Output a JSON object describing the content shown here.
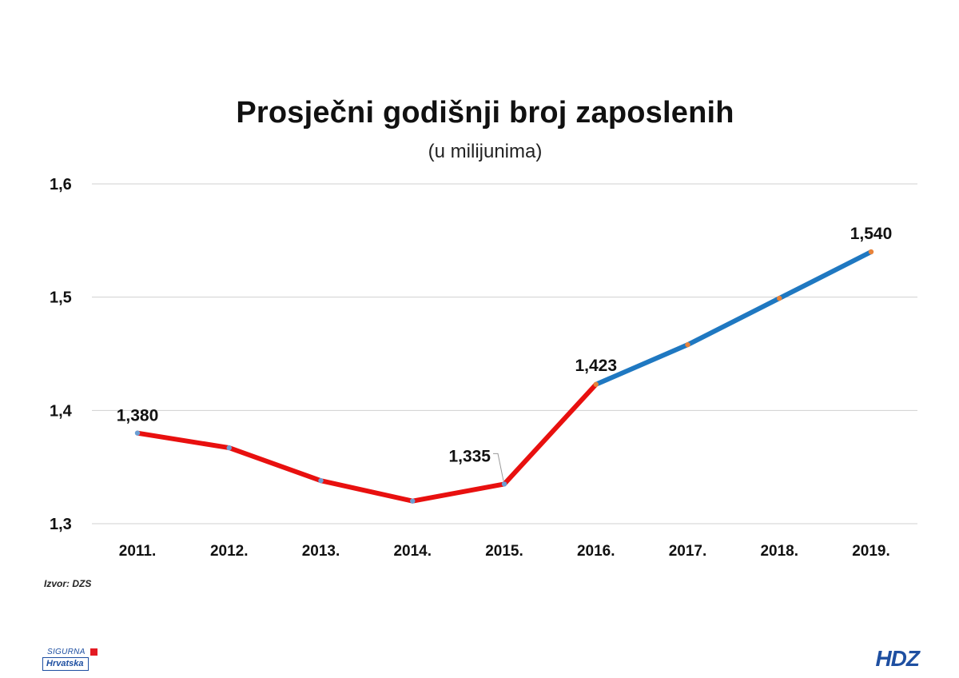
{
  "chart_data": {
    "type": "line",
    "title": "Prosječni godišnji broj zaposlenih",
    "subtitle": "(u milijunima)",
    "categories": [
      "2011.",
      "2012.",
      "2013.",
      "2014.",
      "2015.",
      "2016.",
      "2017.",
      "2018.",
      "2019."
    ],
    "values": [
      1.38,
      1.367,
      1.338,
      1.32,
      1.335,
      1.423,
      1.458,
      1.499,
      1.54
    ],
    "ylim": [
      1.3,
      1.6
    ],
    "yticks": [
      1.3,
      1.4,
      1.5,
      1.6
    ],
    "ytick_labels": [
      "1,3",
      "1,4",
      "1,5",
      "1,6"
    ],
    "segments": [
      {
        "from": 0,
        "to": 5,
        "color": "#e8100f"
      },
      {
        "from": 5,
        "to": 8,
        "color": "#1f78c1"
      }
    ],
    "marker_colors": [
      "#6b9fd4",
      "#6b9fd4",
      "#6b9fd4",
      "#6b9fd4",
      "#6b9fd4",
      "#e8833a",
      "#e8833a",
      "#e8833a",
      "#e8833a"
    ],
    "data_labels": [
      {
        "index": 0,
        "text": "1,380"
      },
      {
        "index": 4,
        "text": "1,335"
      },
      {
        "index": 5,
        "text": "1,423"
      },
      {
        "index": 8,
        "text": "1,540"
      }
    ],
    "grid": true
  },
  "source": "Izvor: DZS",
  "brand_left": {
    "top": "SIGURNA",
    "bottom": "Hrvatska"
  },
  "brand_right": "HDZ"
}
